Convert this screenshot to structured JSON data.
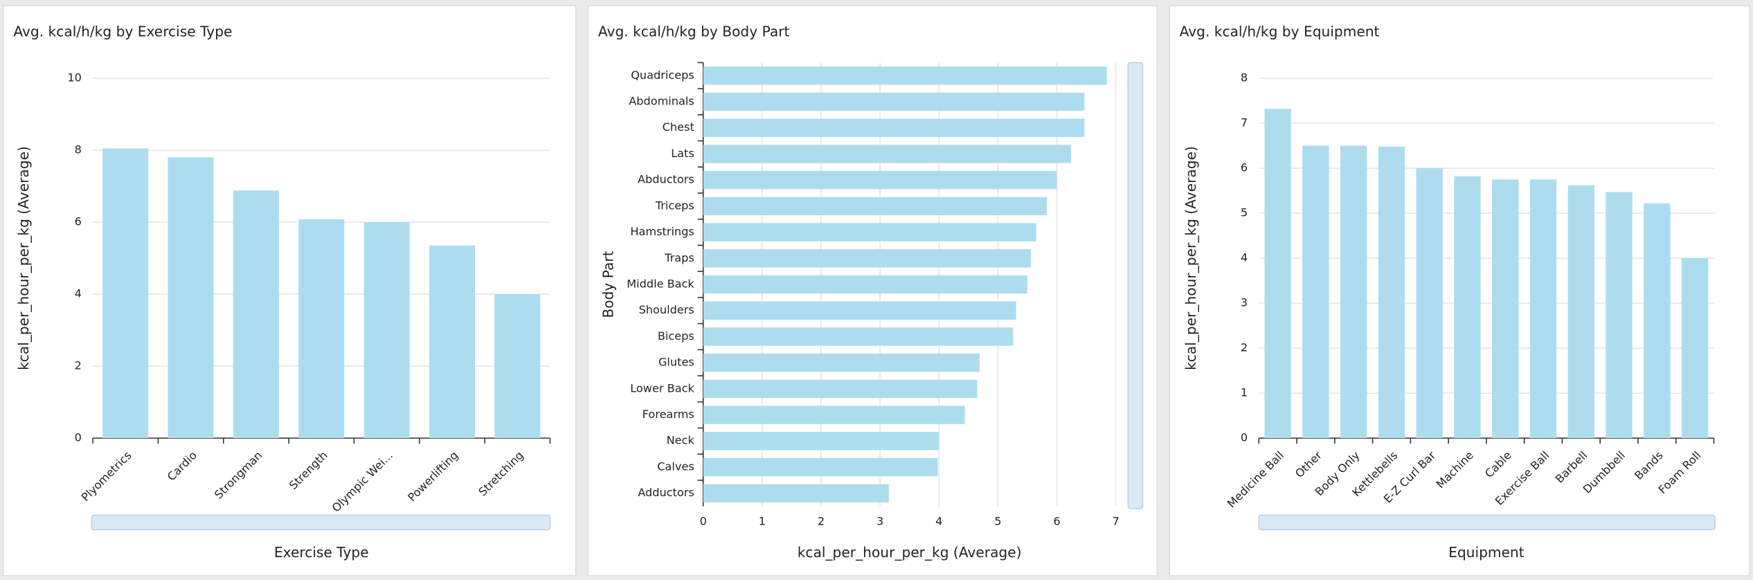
{
  "chart_data": [
    {
      "type": "bar",
      "title": "Avg. kcal/h/kg by Exercise Type",
      "x_label": "Exercise Type",
      "y_label": "kcal_per_hour_per_kg (Average)",
      "categories": [
        "Plyometrics",
        "Cardio",
        "Strongman",
        "Strength",
        "Olympic Wei...",
        "Powerlifting",
        "Stretching"
      ],
      "values": [
        8.05,
        7.8,
        6.88,
        6.08,
        6.0,
        5.35,
        4.0
      ],
      "color": "#addcef",
      "ylim": [
        0,
        10
      ],
      "yticks": [
        0,
        2,
        4,
        6,
        8,
        10
      ],
      "grid": true
    },
    {
      "type": "hbar",
      "title": "Avg. kcal/h/kg by Body Part",
      "x_label": "kcal_per_hour_per_kg (Average)",
      "y_label": "Body Part",
      "categories": [
        "Quadriceps",
        "Abdominals",
        "Chest",
        "Lats",
        "Abductors",
        "Triceps",
        "Hamstrings",
        "Traps",
        "Middle Back",
        "Shoulders",
        "Biceps",
        "Glutes",
        "Lower Back",
        "Forearms",
        "Neck",
        "Calves",
        "Adductors"
      ],
      "values": [
        6.85,
        6.47,
        6.47,
        6.24,
        6.0,
        5.83,
        5.65,
        5.56,
        5.5,
        5.31,
        5.26,
        4.69,
        4.65,
        4.44,
        4.0,
        3.98,
        3.15
      ],
      "color": "#addcef",
      "xlim": [
        0,
        7
      ],
      "xticks": [
        0,
        1,
        2,
        3,
        4,
        5,
        6,
        7
      ],
      "grid": true
    },
    {
      "type": "bar",
      "title": "Avg. kcal/h/kg by Equipment",
      "x_label": "Equipment",
      "y_label": "kcal_per_hour_per_kg (Average)",
      "categories": [
        "Medicine Ball",
        "Other",
        "Body Only",
        "Kettlebells",
        "E-Z Curl Bar",
        "Machine",
        "Cable",
        "Exercise Ball",
        "Barbell",
        "Dumbbell",
        "Bands",
        "Foam Roll"
      ],
      "values": [
        7.32,
        6.5,
        6.5,
        6.48,
        6.0,
        5.82,
        5.75,
        5.75,
        5.62,
        5.47,
        5.22,
        4.0
      ],
      "color": "#addcef",
      "ylim": [
        0,
        8
      ],
      "yticks": [
        0,
        1,
        2,
        3,
        4,
        5,
        6,
        7,
        8
      ],
      "grid": true
    }
  ]
}
